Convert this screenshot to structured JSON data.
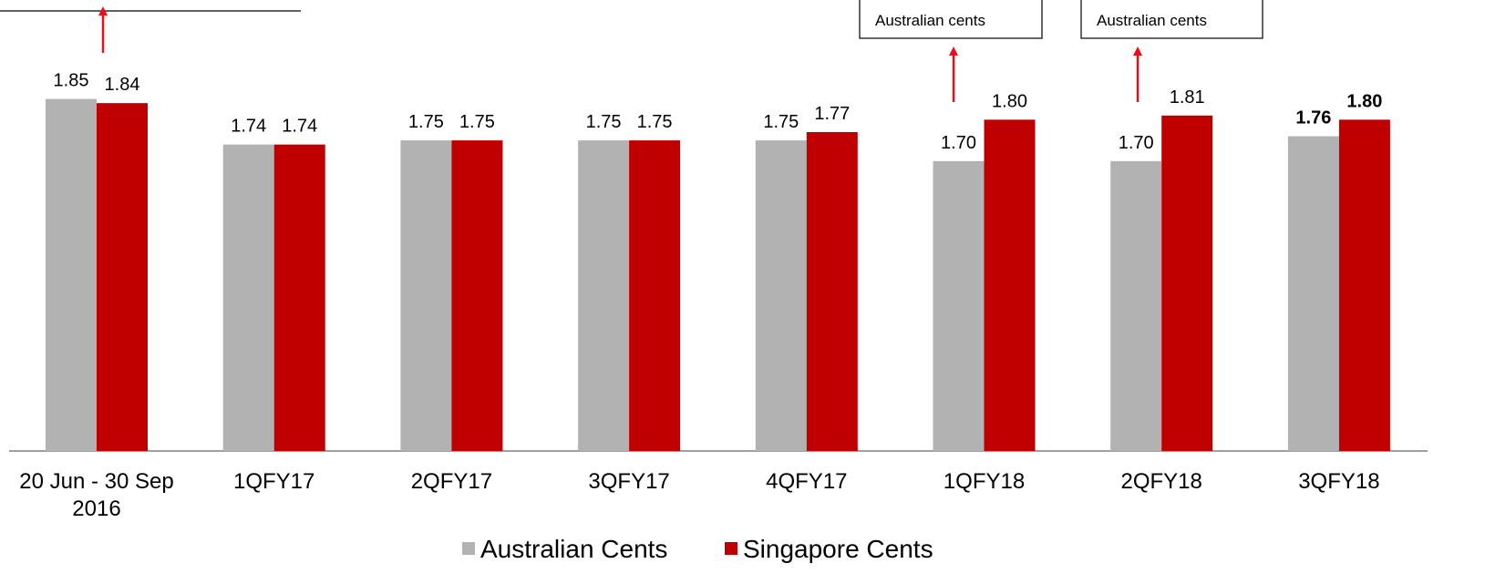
{
  "chart_data": {
    "type": "bar",
    "categories": [
      "20 Jun - 30 Sep 2016",
      "1QFY17",
      "2QFY17",
      "3QFY17",
      "4QFY17",
      "1QFY18",
      "2QFY18",
      "3QFY18"
    ],
    "series": [
      {
        "name": "Australian Cents",
        "color": "#b2b2b2",
        "values": [
          1.85,
          1.74,
          1.75,
          1.75,
          1.75,
          1.7,
          1.7,
          1.76
        ],
        "value_labels": [
          "1.85",
          "1.74",
          "1.75",
          "1.75",
          "1.75",
          "1.70",
          "1.70",
          "1.76"
        ]
      },
      {
        "name": "Singapore Cents",
        "color": "#c00000",
        "values": [
          1.84,
          1.74,
          1.75,
          1.75,
          1.77,
          1.8,
          1.81,
          1.8
        ],
        "value_labels": [
          "1.84",
          "1.74",
          "1.75",
          "1.75",
          "1.77",
          "1.80",
          "1.81",
          "1.80"
        ]
      }
    ],
    "ylim": [
      1,
      2.1
    ],
    "annotations": [
      "Australian cents",
      "Australian cents"
    ]
  }
}
